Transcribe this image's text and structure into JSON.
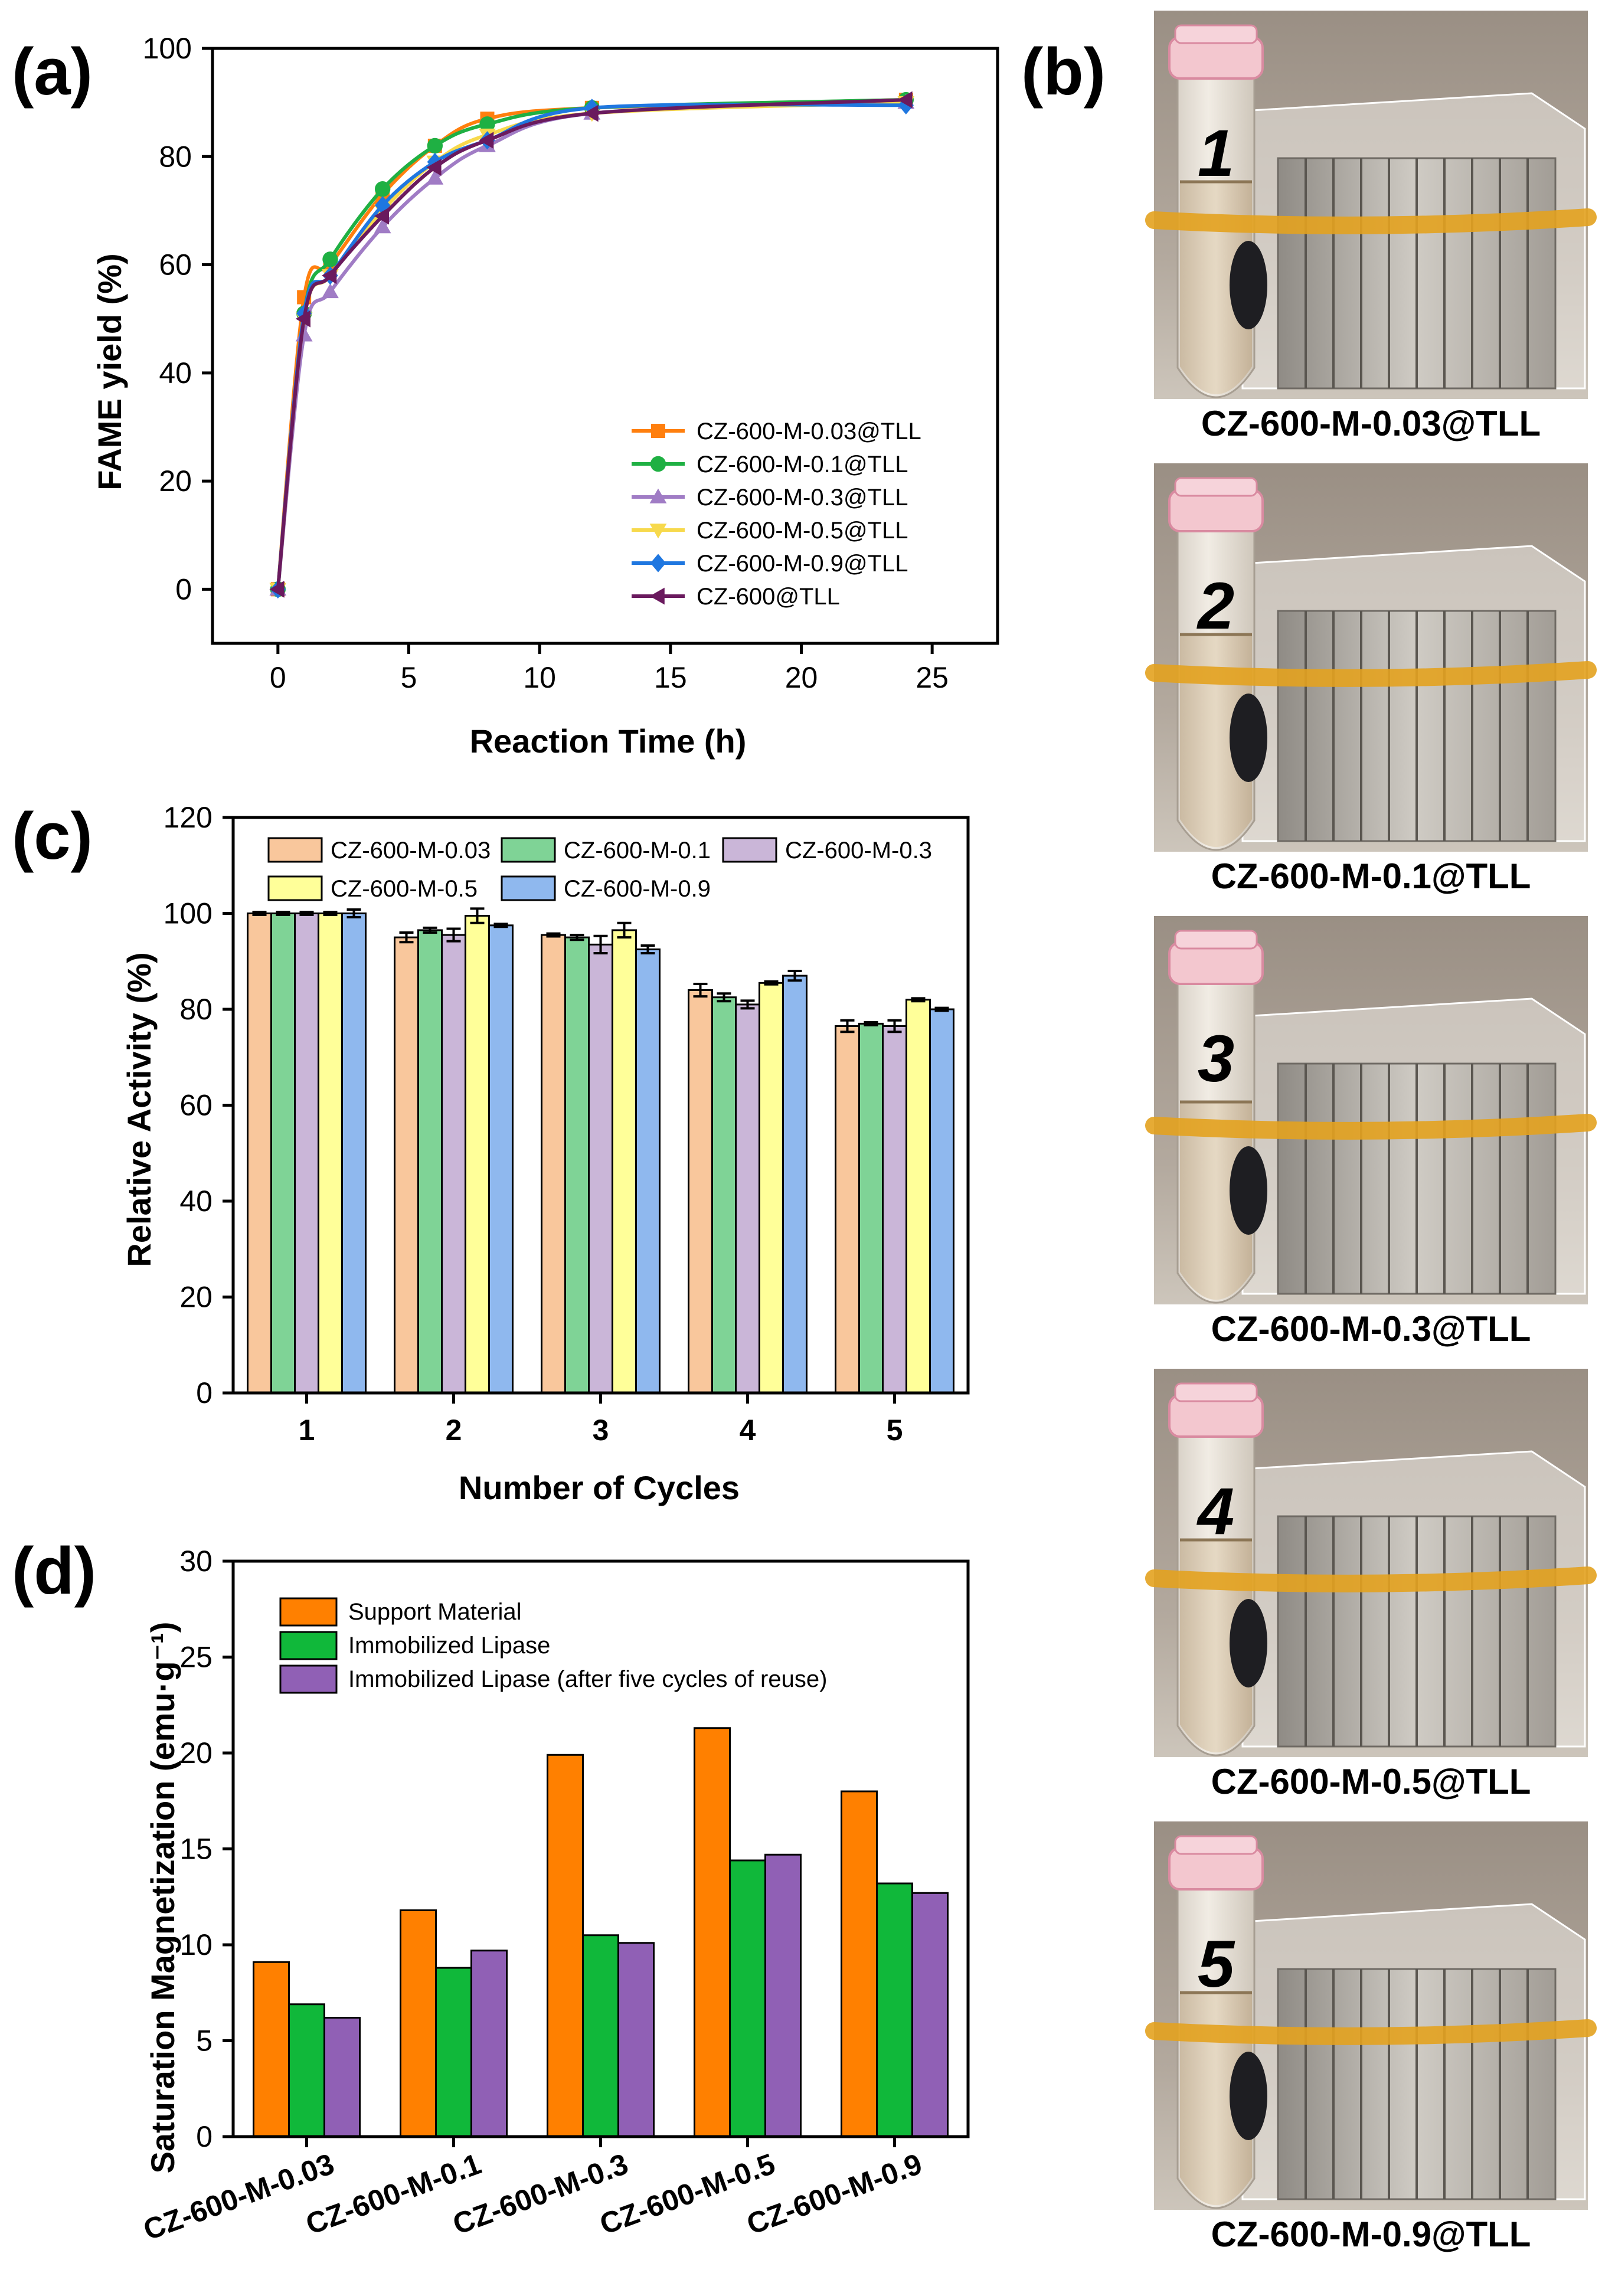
{
  "panel_labels": {
    "a": "(a)",
    "b": "(b)",
    "c": "(c)",
    "d": "(d)"
  },
  "chart_data": [
    {
      "id": "a",
      "type": "line",
      "xlabel": "Reaction Time (h)",
      "ylabel": "FAME yield (%)",
      "xlim": [
        -2.5,
        27.5
      ],
      "ylim": [
        -10,
        100
      ],
      "xticks": [
        0,
        5,
        10,
        15,
        20,
        25
      ],
      "yticks": [
        0,
        20,
        40,
        60,
        80,
        100
      ],
      "legend_position": "lower-right",
      "series": [
        {
          "name": "CZ-600-M-0.03@TLL",
          "color": "#ff7f0e",
          "marker": "square",
          "x": [
            0,
            1,
            2,
            4,
            6,
            8,
            12,
            24
          ],
          "y": [
            0,
            54,
            60,
            73,
            82,
            87,
            89,
            90.5
          ]
        },
        {
          "name": "CZ-600-M-0.1@TLL",
          "color": "#1fb043",
          "marker": "circle",
          "x": [
            0,
            1,
            2,
            4,
            6,
            8,
            12,
            24
          ],
          "y": [
            0,
            51,
            61,
            74,
            82,
            86,
            89,
            90.5
          ]
        },
        {
          "name": "CZ-600-M-0.3@TLL",
          "color": "#a07cc5",
          "marker": "triangle-up",
          "x": [
            0,
            1,
            2,
            4,
            6,
            8,
            12,
            24
          ],
          "y": [
            0,
            47,
            55,
            67,
            76,
            82,
            88,
            90
          ]
        },
        {
          "name": "CZ-600-M-0.5@TLL",
          "color": "#f7d94c",
          "marker": "triangle-down",
          "x": [
            0,
            1,
            2,
            4,
            6,
            8,
            12,
            24
          ],
          "y": [
            0,
            50,
            58,
            70,
            79,
            84,
            88,
            90
          ]
        },
        {
          "name": "CZ-600-M-0.9@TLL",
          "color": "#1f77e0",
          "marker": "diamond",
          "x": [
            0,
            1,
            2,
            4,
            6,
            8,
            12,
            24
          ],
          "y": [
            0,
            51,
            58,
            71,
            79,
            83,
            89,
            89.5
          ]
        },
        {
          "name": "CZ-600@TLL",
          "color": "#6a1a5e",
          "marker": "triangle-left",
          "x": [
            0,
            1,
            2,
            4,
            6,
            8,
            12,
            24
          ],
          "y": [
            0,
            50,
            58,
            69,
            78,
            83,
            88,
            90.5
          ]
        }
      ]
    },
    {
      "id": "c",
      "type": "bar",
      "xlabel": "Number of Cycles",
      "ylabel": "Relative Activity (%)",
      "categories": [
        "1",
        "2",
        "3",
        "4",
        "5"
      ],
      "ylim": [
        0,
        120
      ],
      "yticks": [
        0,
        20,
        40,
        60,
        80,
        100,
        120
      ],
      "legend_position": "top",
      "series": [
        {
          "name": "CZ-600-M-0.03",
          "color": "#f9c79c",
          "values": [
            100,
            95,
            95.5,
            84,
            76.5
          ],
          "errors": [
            0.3,
            1,
            0.3,
            1.3,
            1.2
          ]
        },
        {
          "name": "CZ-600-M-0.1",
          "color": "#7fd396",
          "values": [
            100,
            96.5,
            95,
            82.5,
            77
          ],
          "errors": [
            0.3,
            0.5,
            0.5,
            0.8,
            0.3
          ]
        },
        {
          "name": "CZ-600-M-0.3",
          "color": "#cab6d8",
          "values": [
            100,
            95.5,
            93.5,
            81,
            76.5
          ],
          "errors": [
            0.3,
            1.3,
            1.8,
            0.8,
            1.2
          ]
        },
        {
          "name": "CZ-600-M-0.5",
          "color": "#ffff99",
          "values": [
            100,
            99.5,
            96.5,
            85.5,
            82
          ],
          "errors": [
            0.3,
            1.5,
            1.5,
            0.3,
            0.3
          ]
        },
        {
          "name": "CZ-600-M-0.9",
          "color": "#8fb8ee",
          "values": [
            100,
            97.5,
            92.5,
            87,
            80
          ],
          "errors": [
            0.8,
            0.3,
            0.8,
            1,
            0.3
          ]
        }
      ]
    },
    {
      "id": "d",
      "type": "bar",
      "xlabel": "",
      "ylabel": "Saturation Magnetization (emu·g⁻¹)",
      "categories": [
        "CZ-600-M-0.03",
        "CZ-600-M-0.1",
        "CZ-600-M-0.3",
        "CZ-600-M-0.5",
        "CZ-600-M-0.9"
      ],
      "ylim": [
        0,
        30
      ],
      "yticks": [
        0,
        5,
        10,
        15,
        20,
        25,
        30
      ],
      "legend_position": "top-left",
      "series": [
        {
          "name": "Support Material",
          "color": "#ff8000",
          "values": [
            9.1,
            11.8,
            19.9,
            21.3,
            18
          ]
        },
        {
          "name": "Immobilized Lipase",
          "color": "#10b83a",
          "values": [
            6.9,
            8.8,
            10.5,
            14.4,
            13.2
          ]
        },
        {
          "name": "Immobilized Lipase (after five cycles of reuse)",
          "color": "#9060b5",
          "values": [
            6.2,
            9.7,
            10.1,
            14.7,
            12.7
          ]
        }
      ]
    }
  ],
  "photos": [
    {
      "caption": "CZ-600-M-0.03@TLL",
      "tube_label": "1"
    },
    {
      "caption": "CZ-600-M-0.1@TLL",
      "tube_label": "2"
    },
    {
      "caption": "CZ-600-M-0.3@TLL",
      "tube_label": "3"
    },
    {
      "caption": "CZ-600-M-0.5@TLL",
      "tube_label": "4"
    },
    {
      "caption": "CZ-600-M-0.9@TLL",
      "tube_label": "5"
    }
  ]
}
